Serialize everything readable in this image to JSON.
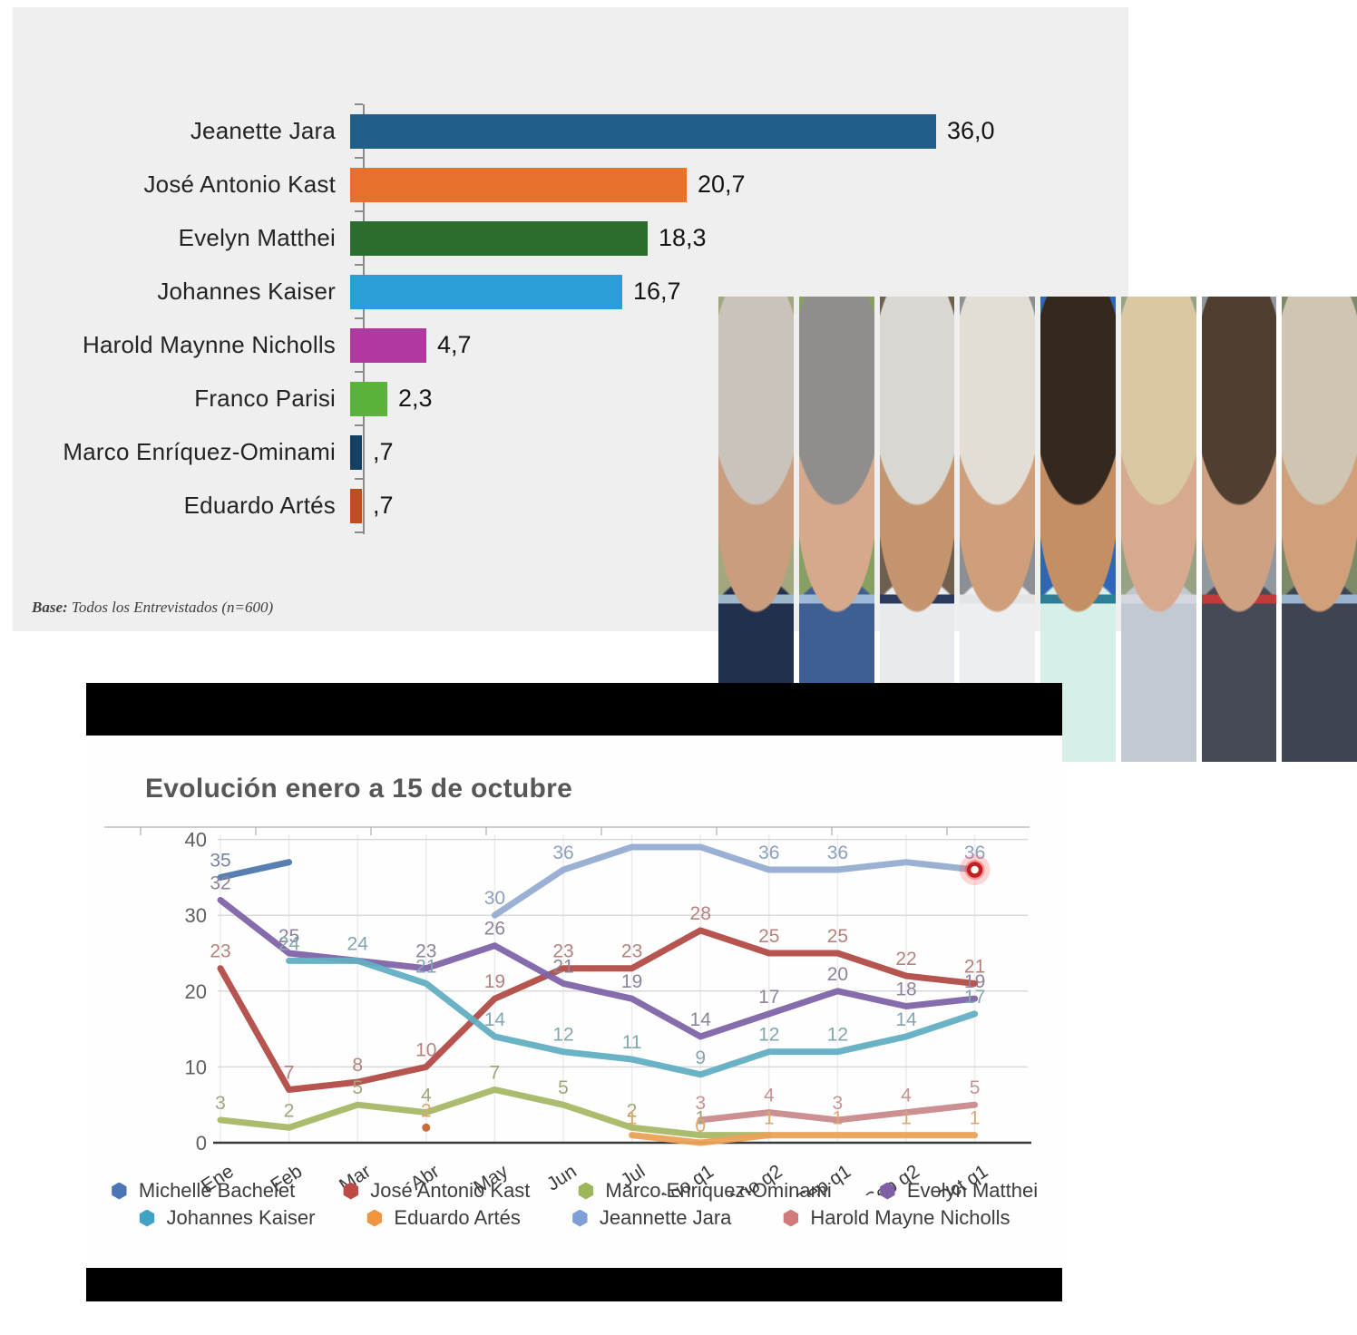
{
  "bar_panel": {
    "footnote_prefix": "Base:",
    "footnote_text": " Todos los Entrevistados (n=600)"
  },
  "evolution_panel": {
    "title": "Evolución enero a 15 de octubre"
  },
  "collage": {
    "strips": [
      {
        "id": "strip-1",
        "bg": "#a3a77f",
        "hair": "#c9c3bb",
        "skin": "#c99d7e",
        "cloth": "#23304d",
        "accent": "#9db6c9"
      },
      {
        "id": "strip-2",
        "bg": "#87a061",
        "hair": "#8f8e8c",
        "skin": "#d6a98c",
        "cloth": "#3f5f92",
        "accent": "#9db9d8"
      },
      {
        "id": "strip-3",
        "bg": "#6e5f4e",
        "hair": "#d9d7d2",
        "skin": "#c3946e",
        "cloth": "#e9eaee",
        "accent": "#2c3a5e"
      },
      {
        "id": "strip-4",
        "bg": "#8c8f93",
        "hair": "#e2ded6",
        "skin": "#cf9f7c",
        "cloth": "#edeef0",
        "accent": "#e3e4e6"
      },
      {
        "id": "strip-5",
        "bg": "#2f66b5",
        "hair": "#35291f",
        "skin": "#c58f65",
        "cloth": "#d7efe9",
        "accent": "#2e7e96"
      },
      {
        "id": "strip-6",
        "bg": "#97a284",
        "hair": "#d9c8a2",
        "skin": "#d7a98f",
        "cloth": "#c3c9d1",
        "accent": "#d4d8de"
      },
      {
        "id": "strip-7",
        "bg": "#91999f",
        "hair": "#4f3f30",
        "skin": "#cfa183",
        "cloth": "#454a56",
        "accent": "#c23b3b"
      },
      {
        "id": "strip-8",
        "bg": "#7c8a68",
        "hair": "#cfc5b2",
        "skin": "#d0a07a",
        "cloth": "#3e4452",
        "accent": "#9ab4d0"
      }
    ]
  },
  "chart_data": [
    {
      "type": "bar",
      "orientation": "horizontal",
      "xlim": [
        0,
        36
      ],
      "value_format": "comma-decimal",
      "bars": [
        {
          "label": "Jeanette Jara",
          "value": 36.0,
          "display": "36,0",
          "color": "#205f8a"
        },
        {
          "label": "José Antonio Kast",
          "value": 20.7,
          "display": "20,7",
          "color": "#e8702f"
        },
        {
          "label": "Evelyn Matthei",
          "value": 18.3,
          "display": "18,3",
          "color": "#2b6d2f"
        },
        {
          "label": "Johannes Kaiser",
          "value": 16.7,
          "display": "16,7",
          "color": "#2b9ed8"
        },
        {
          "label": "Harold Maynne Nicholls",
          "value": 4.7,
          "display": "4,7",
          "color": "#b138a0"
        },
        {
          "label": "Franco Parisi",
          "value": 2.3,
          "display": "2,3",
          "color": "#5bb23a"
        },
        {
          "label": "Marco Enríquez-Ominami",
          "value": 0.7,
          "display": ",7",
          "color": "#16405f"
        },
        {
          "label": "Eduardo Artés",
          "value": 0.7,
          "display": ",7",
          "color": "#c04d1e"
        }
      ],
      "footnote": "Base: Todos los Entrevistados (n=600)"
    },
    {
      "type": "line",
      "title": "Evolución enero a 15 de octubre",
      "categories": [
        "Ene",
        "Feb",
        "Mar",
        "Abr",
        "May",
        "Jun",
        "Jul",
        "Ago q1",
        "Ago q2",
        "Sep q1",
        "Sep q2",
        "Oct q1"
      ],
      "ylim": [
        0,
        40
      ],
      "yticks": [
        0,
        10,
        20,
        30,
        40
      ],
      "grid": true,
      "legend_position": "bottom",
      "highlight": {
        "series": "Jeannette Jara",
        "category": "Oct q1",
        "style": "red-ring"
      },
      "series": [
        {
          "name": "Michelle Bachelet",
          "color": "#4e78ad",
          "label_color": "#76839d",
          "values": [
            35,
            37,
            null,
            null,
            null,
            null,
            null,
            null,
            null,
            null,
            null,
            null
          ],
          "labeled": [
            0
          ]
        },
        {
          "name": "José Antonio Kast",
          "color": "#b24b46",
          "label_color": "#b5837d",
          "values": [
            23,
            7,
            8,
            10,
            19,
            23,
            23,
            28,
            25,
            25,
            22,
            21
          ],
          "labeled": [
            0,
            1,
            2,
            3,
            4,
            5,
            6,
            7,
            8,
            9,
            10,
            11
          ]
        },
        {
          "name": "Marco Enriquez-Ominami",
          "color": "#a7b866",
          "label_color": "#a2a57b",
          "values": [
            3,
            2,
            5,
            4,
            7,
            5,
            2,
            1,
            1,
            null,
            null,
            null
          ],
          "labeled": [
            0,
            1,
            2,
            3,
            4,
            5,
            6,
            7
          ]
        },
        {
          "name": "Evelyn Matthei",
          "color": "#8064a8",
          "label_color": "#8f8399",
          "values": [
            32,
            25,
            24,
            23,
            26,
            21,
            19,
            14,
            17,
            20,
            18,
            19
          ],
          "labeled": [
            0,
            1,
            3,
            4,
            5,
            6,
            7,
            8,
            9,
            10,
            11
          ]
        },
        {
          "name": "Johannes Kaiser",
          "color": "#62aec2",
          "label_color": "#82a7ae",
          "values": [
            null,
            24,
            24,
            21,
            14,
            12,
            11,
            9,
            12,
            12,
            14,
            17
          ],
          "labeled": [
            1,
            2,
            3,
            4,
            5,
            6,
            7,
            8,
            9,
            10,
            11
          ]
        },
        {
          "name": "Eduardo Artés",
          "color": "#eba156",
          "label_color": "#dca76b",
          "values": [
            null,
            null,
            null,
            2,
            null,
            null,
            1,
            0,
            1,
            1,
            1,
            1
          ],
          "labeled": [
            3,
            6,
            7,
            8,
            9,
            10,
            11
          ],
          "isolated_points": [
            3
          ]
        },
        {
          "name": "Jeannette Jara",
          "color": "#96add2",
          "label_color": "#8da0bf",
          "values": [
            null,
            null,
            null,
            null,
            30,
            36,
            39,
            39,
            36,
            36,
            37,
            36
          ],
          "labeled": [
            4,
            5,
            8,
            9,
            11
          ],
          "highlight_last": true
        },
        {
          "name": "Harold Mayne Nicholls",
          "color": "#c9898c",
          "label_color": "#c39496",
          "values": [
            null,
            null,
            null,
            null,
            null,
            null,
            null,
            3,
            4,
            3,
            4,
            5
          ],
          "labeled": [
            7,
            8,
            9,
            10,
            11
          ]
        }
      ],
      "legend_rows": [
        [
          {
            "label": "Michelle Bachelet",
            "color": "#4a76b5"
          },
          {
            "label": "José Antonio Kast",
            "color": "#bd4a44"
          },
          {
            "label": "Marco Enriquez-Ominami",
            "color": "#9db65a"
          },
          {
            "label": "Evelyn Matthei",
            "color": "#7e60a6"
          }
        ],
        [
          {
            "label": "Johannes Kaiser",
            "color": "#41a3c4"
          },
          {
            "label": "Eduardo Artés",
            "color": "#f19440"
          },
          {
            "label": "Jeannette Jara",
            "color": "#7e9ed8"
          },
          {
            "label": "Harold Mayne Nicholls",
            "color": "#d07b7b"
          }
        ]
      ]
    }
  ]
}
